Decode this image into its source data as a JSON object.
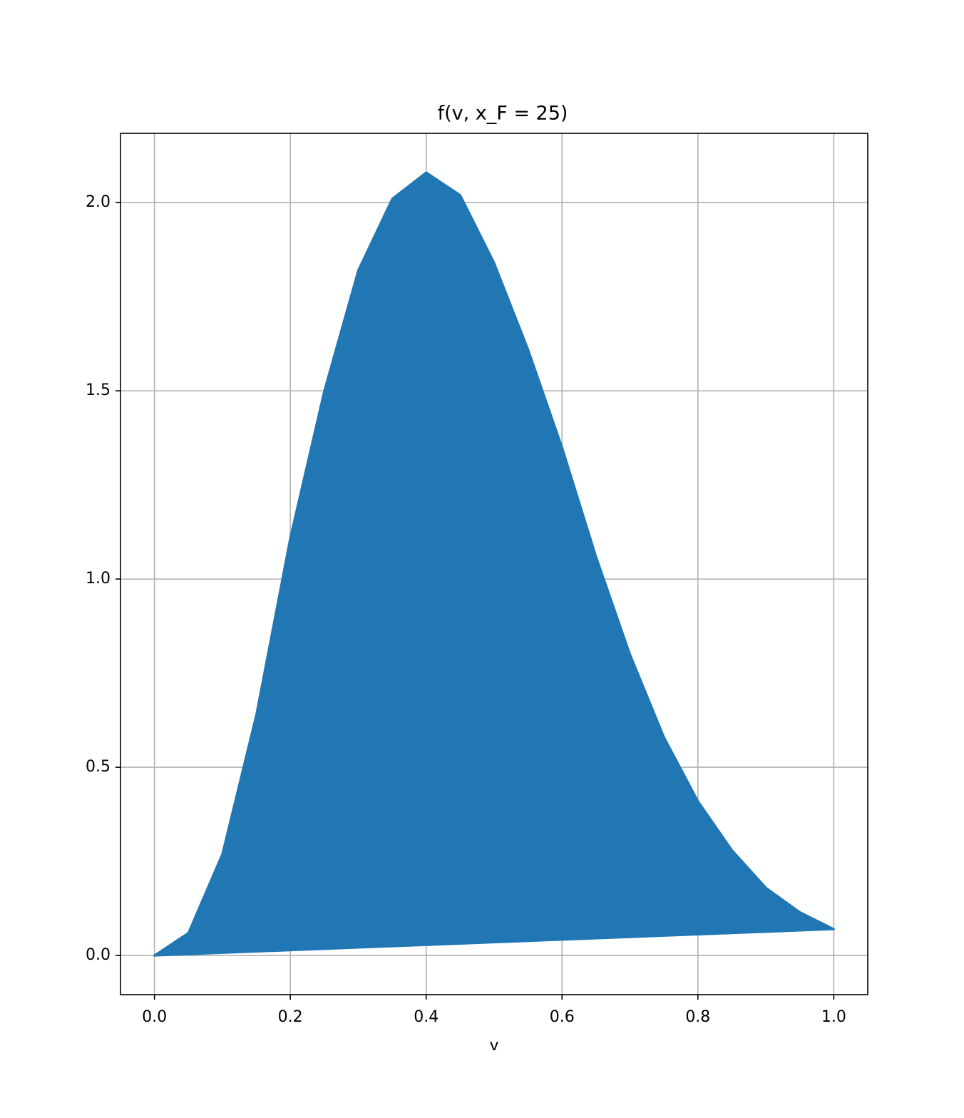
{
  "chart_data": {
    "type": "fill",
    "title": "f(v, x_F = 25)",
    "xlabel": "v",
    "x": [
      0,
      0.05,
      0.1,
      0.15,
      0.2,
      0.25,
      0.3,
      0.35,
      0.4,
      0.45,
      0.5,
      0.55,
      0.6,
      0.65,
      0.7,
      0.75,
      0.8,
      0.85,
      0.9,
      0.95,
      1.0
    ],
    "values": [
      0,
      0.06,
      0.27,
      0.64,
      1.11,
      1.5,
      1.82,
      2.01,
      2.08,
      2.02,
      1.84,
      1.61,
      1.35,
      1.06,
      0.8,
      0.58,
      0.41,
      0.28,
      0.18,
      0.115,
      0.07
    ],
    "color": "#2077b4",
    "xlim": [
      -0.05,
      1.05
    ],
    "xticks": [
      {
        "value": 0,
        "label": "0.0"
      },
      0.2,
      0.4,
      0.6,
      0.8,
      {
        "value": 1,
        "label": "1.0"
      }
    ],
    "ylim": [
      -0.104,
      2.184
    ],
    "yticks": [
      {
        "value": 0,
        "label": "0.0"
      },
      0.5,
      {
        "value": 1,
        "label": "1.0"
      },
      1.5,
      {
        "value": 2,
        "label": "2.0"
      }
    ],
    "grid": true
  }
}
